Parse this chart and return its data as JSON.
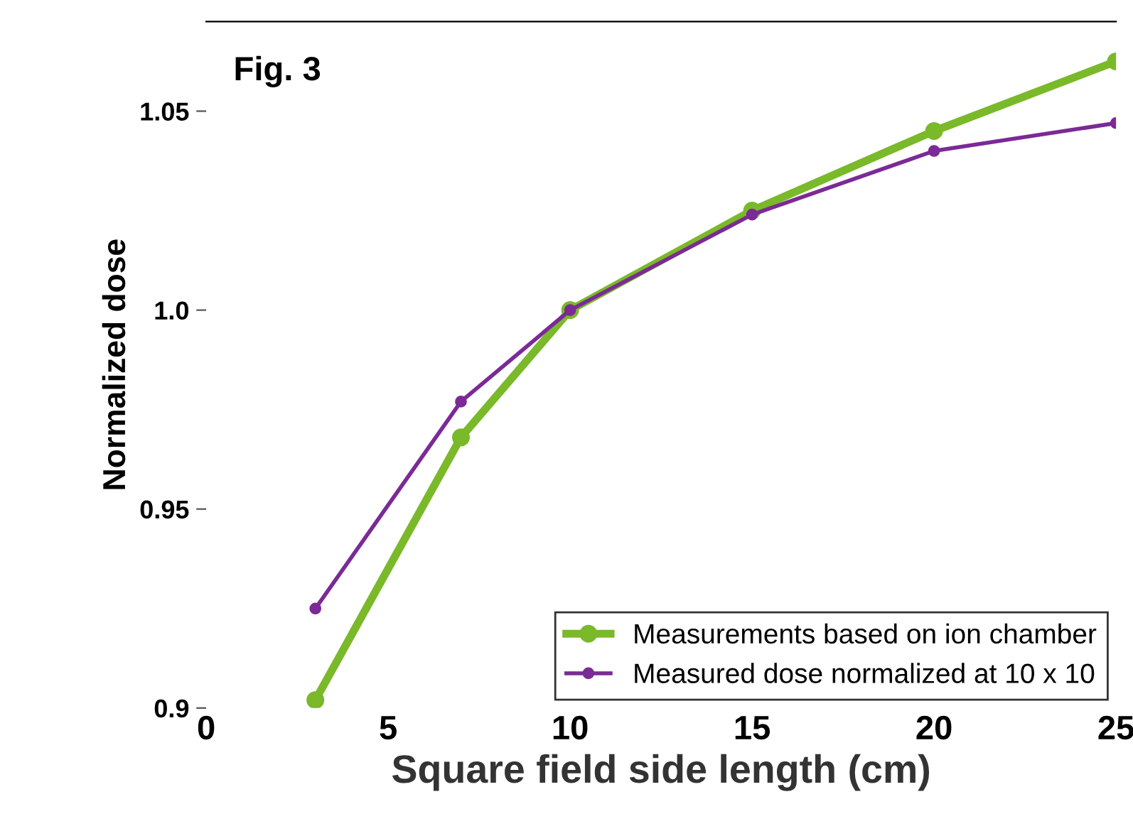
{
  "chart_data": {
    "type": "line",
    "title": "Fig. 3",
    "xlabel": "Square field side length (cm)",
    "ylabel": "Normalized dose",
    "x": [
      3,
      7,
      10,
      15,
      20,
      25
    ],
    "series": [
      {
        "name": "Measurements based on ion chamber",
        "color": "#7ab929",
        "values": [
          0.902,
          0.968,
          1.0,
          1.025,
          1.045,
          1.0625
        ]
      },
      {
        "name": "Measured dose normalized at 10 x 10",
        "color": "#7b2a96",
        "values": [
          0.925,
          0.977,
          1.0,
          1.024,
          1.04,
          1.047
        ]
      }
    ],
    "xlim": [
      0,
      25
    ],
    "xticks": [
      0,
      5,
      10,
      15,
      20,
      25
    ],
    "ylim": [
      0.9,
      1.0725
    ],
    "yticks": [
      0.9,
      0.95,
      {
        "value": 1.0,
        "label": "1.0"
      },
      1.05
    ],
    "marker": "circle",
    "line_style": "solid",
    "grid": false,
    "legend": "bottom right"
  }
}
